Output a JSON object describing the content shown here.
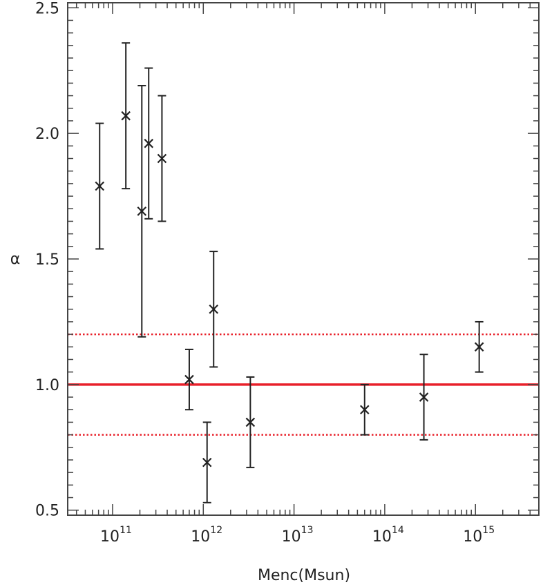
{
  "chart_data": {
    "type": "scatter",
    "title": "",
    "xlabel": "Menc(Msun)",
    "ylabel": "α",
    "xscale": "log",
    "xlim": [
      32000000000.0,
      5000000000000000.0
    ],
    "ylim": [
      0.48,
      2.52
    ],
    "x_ticks": [
      {
        "base": "10",
        "exp": "11",
        "value": 100000000000.0
      },
      {
        "base": "10",
        "exp": "12",
        "value": 1000000000000.0
      },
      {
        "base": "10",
        "exp": "13",
        "value": 10000000000000.0
      },
      {
        "base": "10",
        "exp": "14",
        "value": 100000000000000.0
      },
      {
        "base": "10",
        "exp": "15",
        "value": 1000000000000000.0
      }
    ],
    "y_ticks": [
      {
        "label": "0.5",
        "value": 0.5
      },
      {
        "label": "1.0",
        "value": 1.0
      },
      {
        "label": "1.5",
        "value": 1.5
      },
      {
        "label": "2.0",
        "value": 2.0
      },
      {
        "label": "2.5",
        "value": 2.5
      }
    ],
    "grid": false,
    "marker": "x",
    "points": [
      {
        "x": 72000000000.0,
        "y": 1.79,
        "err_low": 0.25,
        "err_high": 0.25
      },
      {
        "x": 140000000000.0,
        "y": 2.07,
        "err_low": 0.29,
        "err_high": 0.29
      },
      {
        "x": 210000000000.0,
        "y": 1.69,
        "err_low": 0.5,
        "err_high": 0.5
      },
      {
        "x": 250000000000.0,
        "y": 1.96,
        "err_low": 0.3,
        "err_high": 0.3
      },
      {
        "x": 350000000000.0,
        "y": 1.9,
        "err_low": 0.25,
        "err_high": 0.25
      },
      {
        "x": 700000000000.0,
        "y": 1.02,
        "err_low": 0.12,
        "err_high": 0.12
      },
      {
        "x": 1100000000000.0,
        "y": 0.69,
        "err_low": 0.16,
        "err_high": 0.16
      },
      {
        "x": 1300000000000.0,
        "y": 1.3,
        "err_low": 0.23,
        "err_high": 0.23
      },
      {
        "x": 3300000000000.0,
        "y": 0.85,
        "err_low": 0.18,
        "err_high": 0.18
      },
      {
        "x": 60000000000000.0,
        "y": 0.9,
        "err_low": 0.1,
        "err_high": 0.1
      },
      {
        "x": 270000000000000.0,
        "y": 0.95,
        "err_low": 0.17,
        "err_high": 0.17
      },
      {
        "x": 1100000000000000.0,
        "y": 1.15,
        "err_low": 0.1,
        "err_high": 0.1
      }
    ],
    "reference_lines": [
      {
        "y": 1.0,
        "style": "solid",
        "color": "#e8202a"
      },
      {
        "y": 1.2,
        "style": "dotted",
        "color": "#e8202a"
      },
      {
        "y": 0.8,
        "style": "dotted",
        "color": "#e8202a"
      }
    ],
    "colors": {
      "points": "#222222",
      "axes": "#444444",
      "reference": "#e8202a"
    }
  }
}
